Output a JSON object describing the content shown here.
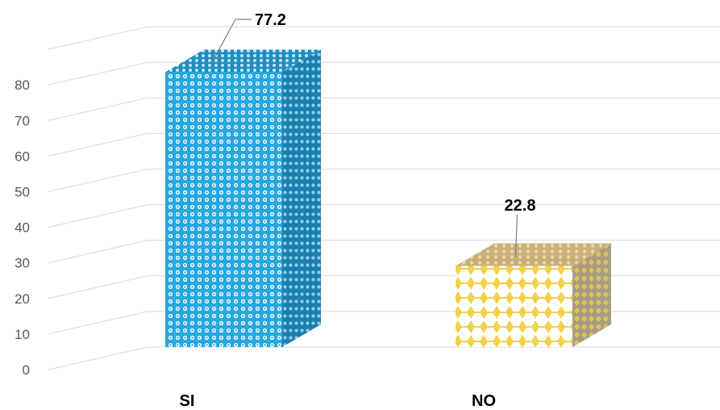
{
  "chart_data": {
    "type": "bar",
    "title": "",
    "xlabel": "",
    "ylabel": "",
    "categories": [
      "SI",
      "NO"
    ],
    "values": [
      77.2,
      22.8
    ],
    "value_labels": [
      "77.2",
      "22.8"
    ],
    "ylim": [
      0,
      90
    ],
    "yticks": [
      0,
      10,
      20,
      30,
      40,
      50,
      60,
      70,
      80
    ],
    "grid": true,
    "legend": "none",
    "bar_colors": [
      "#29a8e0",
      "#f2d14b"
    ],
    "style": "3d-column"
  }
}
